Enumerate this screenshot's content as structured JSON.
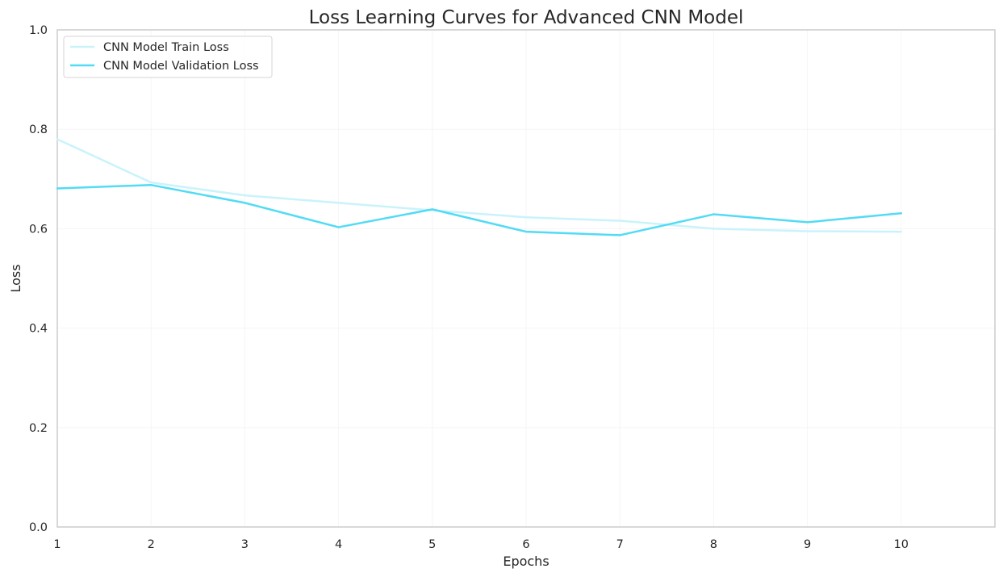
{
  "chart_data": {
    "type": "line",
    "title": "Loss Learning Curves for Advanced CNN Model",
    "xlabel": "Epochs",
    "ylabel": "Loss",
    "x": [
      1,
      2,
      3,
      4,
      5,
      6,
      7,
      8,
      9,
      10
    ],
    "xlim": [
      1,
      11
    ],
    "ylim": [
      0,
      1
    ],
    "xticks": [
      1,
      2,
      3,
      4,
      5,
      6,
      7,
      8,
      9,
      10
    ],
    "yticks": [
      0.0,
      0.2,
      0.4,
      0.6,
      0.8,
      1.0
    ],
    "ytick_labels": [
      "0.0",
      "0.2",
      "0.4",
      "0.6",
      "0.8",
      "1.0"
    ],
    "grid": true,
    "legend_position": "upper-left",
    "series": [
      {
        "name": "CNN Model Train Loss",
        "color": "#c9f3fb",
        "values": [
          0.78,
          0.693,
          0.667,
          0.652,
          0.637,
          0.623,
          0.616,
          0.6,
          0.595,
          0.594
        ]
      },
      {
        "name": "CNN Model Validation Loss",
        "color": "#52dbf5",
        "values": [
          0.681,
          0.688,
          0.652,
          0.603,
          0.639,
          0.594,
          0.587,
          0.629,
          0.613,
          0.631
        ]
      }
    ]
  }
}
